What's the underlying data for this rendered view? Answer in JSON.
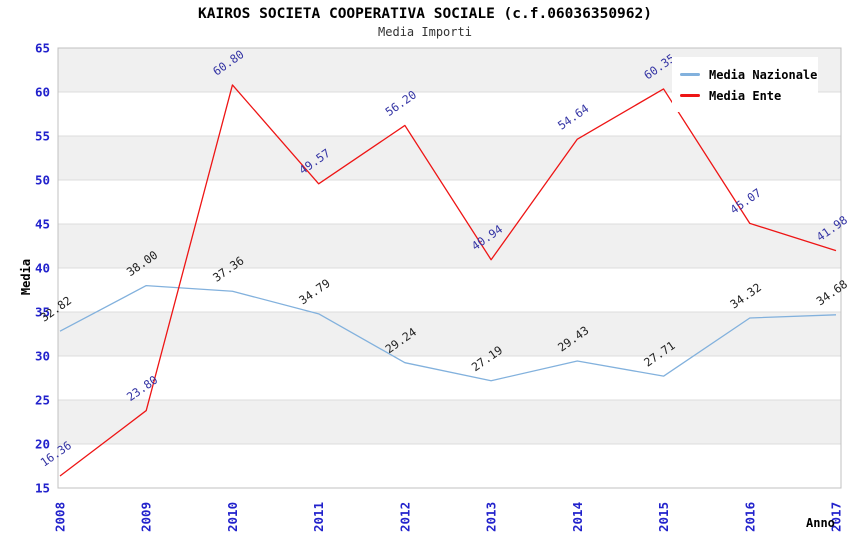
{
  "header": {
    "title": "KAIROS SOCIETA COOPERATIVA SOCIALE (c.f.06036350962)",
    "subtitle": "Media Importi"
  },
  "legend": {
    "items": [
      {
        "label": "Media Nazionale",
        "color": "#82b1dd"
      },
      {
        "label": "Media Ente",
        "color": "#ee1515"
      }
    ]
  },
  "chart_data": {
    "type": "line",
    "title": "KAIROS SOCIETA COOPERATIVA SOCIALE (c.f.06036350962)",
    "subtitle": "Media Importi",
    "xlabel": "Anno",
    "ylabel": "Media",
    "x": [
      "2008",
      "2009",
      "2010",
      "2011",
      "2012",
      "2013",
      "2014",
      "2015",
      "2016",
      "2017"
    ],
    "ylim": [
      15,
      65
    ],
    "ytick_step": 5,
    "grid": true,
    "legend_position": "top-right",
    "band_colors": [
      "#f0f0f0",
      "#ffffff"
    ],
    "gridline_color": "#dcdcdc",
    "border_color": "#c0c0c0",
    "axis_tick_color": "#2222cc",
    "series": [
      {
        "name": "Media Nazionale",
        "color": "#82b1dd",
        "label_color": "#222222",
        "values": [
          32.82,
          38.0,
          37.36,
          34.79,
          29.24,
          27.19,
          29.43,
          27.71,
          34.32,
          34.68
        ]
      },
      {
        "name": "Media Ente",
        "color": "#ee1515",
        "label_color": "#3434a4",
        "values": [
          16.36,
          23.8,
          60.8,
          49.57,
          56.2,
          40.94,
          54.64,
          60.35,
          45.07,
          41.98
        ]
      }
    ]
  }
}
